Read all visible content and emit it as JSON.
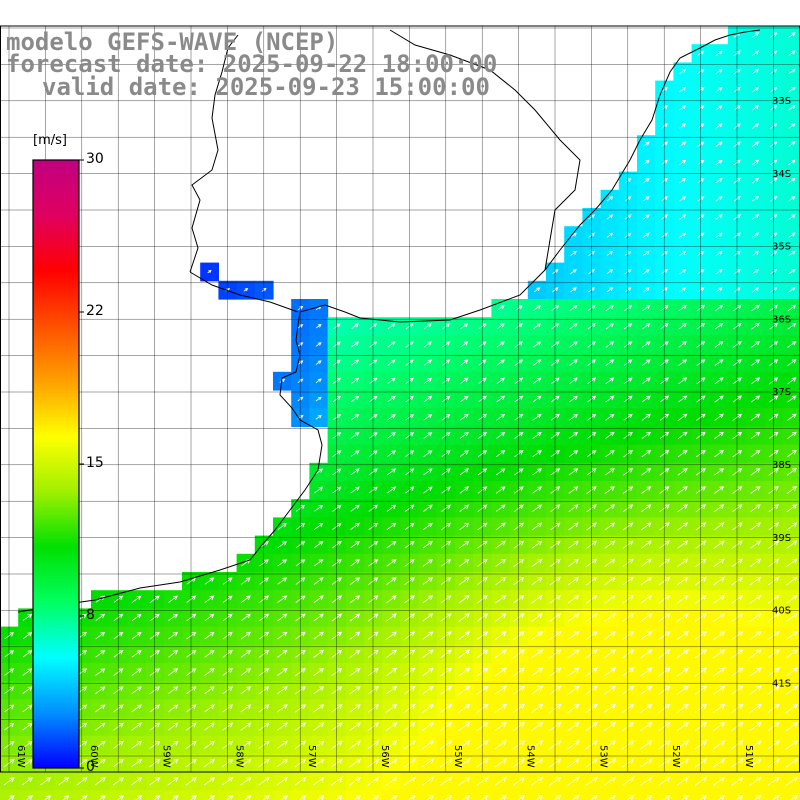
{
  "title": {
    "line1": "modelo GEFS-WAVE (NCEP)",
    "line2": "forecast date: 2025-09-22 18:00:00",
    "line3": "valid date: 2025-09-23 15:00:00"
  },
  "colorbar": {
    "unit": "[m/s]",
    "ticks": [
      "30",
      "22",
      "15",
      "8",
      "0"
    ],
    "colors": [
      "#0000ff",
      "#0090ff",
      "#00ffff",
      "#00ff60",
      "#00e000",
      "#a0f000",
      "#ffff00",
      "#ffa000",
      "#ff5000",
      "#ff0000",
      "#e00060",
      "#c00080"
    ]
  },
  "map": {
    "lat_labels": [
      "33S",
      "34S",
      "35S",
      "36S",
      "37S",
      "38S",
      "39S",
      "40S",
      "41S"
    ],
    "lon_labels": [
      "61W",
      "60W",
      "59W",
      "58W",
      "57W",
      "56W",
      "55W",
      "54W",
      "53W",
      "52W",
      "51W"
    ],
    "colors": {
      "land": "#ffffff",
      "grid": "#000000",
      "coast": "#000000",
      "arrow": "#ffffff"
    }
  }
}
